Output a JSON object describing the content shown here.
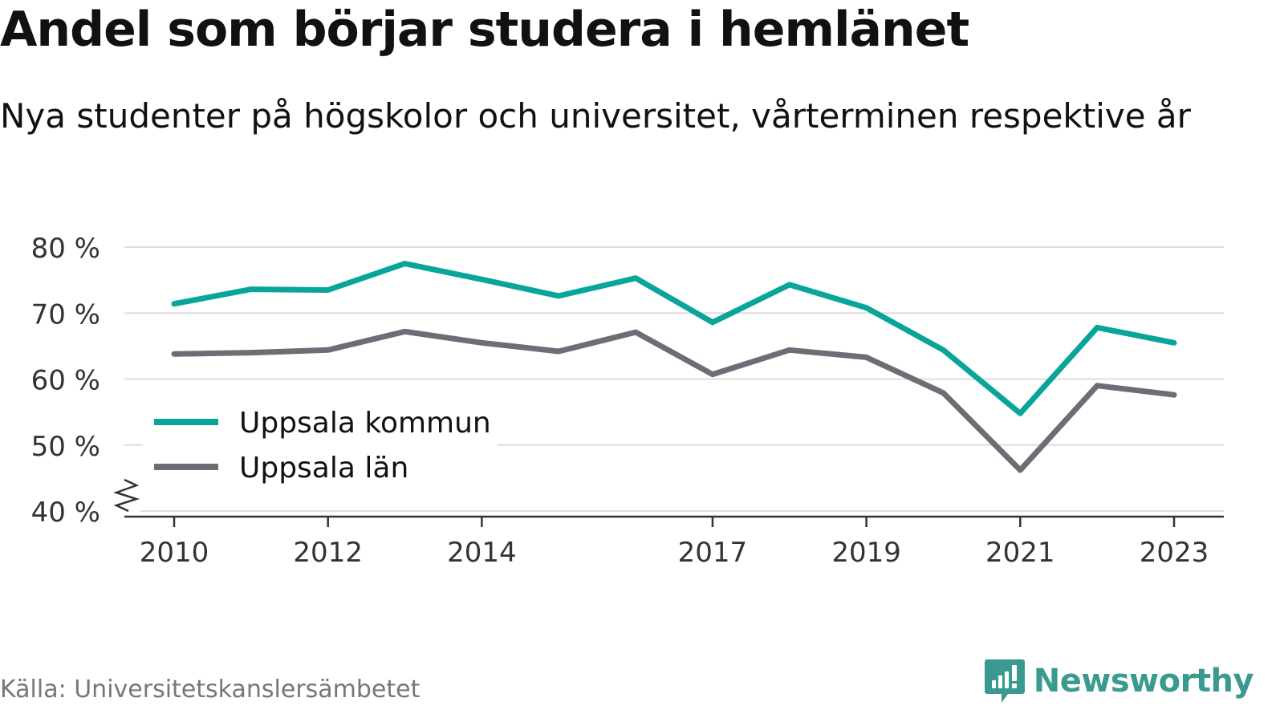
{
  "title": "Andel som börjar studera i hemlänet",
  "subtitle": "Nya studenter på högskolor och universitet, vårterminen respektive år",
  "source": "Källa: Universitetskanslersämbetet",
  "brand": {
    "name": "Newsworthy",
    "icon": "newsworthy-logo-icon",
    "color": "#3a9a8f"
  },
  "chart_data": {
    "type": "line",
    "x": [
      2010,
      2011,
      2012,
      2013,
      2014,
      2015,
      2016,
      2017,
      2018,
      2019,
      2020,
      2021,
      2022,
      2023
    ],
    "x_tick_labels": [
      "2010",
      "2012",
      "2014",
      "2017",
      "2019",
      "2021",
      "2023"
    ],
    "y_ticks": [
      40,
      50,
      60,
      70,
      80
    ],
    "y_tick_labels": [
      "40 %",
      "50 %",
      "60 %",
      "70 %",
      "80 %"
    ],
    "ylim": [
      40,
      80
    ],
    "y_axis_break": true,
    "grid": "horizontal",
    "legend_position": "lower-left",
    "series": [
      {
        "name": "Uppsala kommun",
        "color": "#0aa59a",
        "values": [
          71.4,
          73.6,
          73.5,
          77.5,
          75.1,
          72.6,
          75.3,
          68.6,
          74.3,
          70.8,
          64.4,
          54.8,
          67.8,
          65.5
        ]
      },
      {
        "name": "Uppsala län",
        "color": "#6e6d75",
        "values": [
          63.8,
          64.0,
          64.4,
          67.2,
          65.5,
          64.2,
          67.1,
          60.7,
          64.4,
          63.3,
          57.9,
          46.2,
          59.0,
          57.6
        ]
      }
    ]
  }
}
